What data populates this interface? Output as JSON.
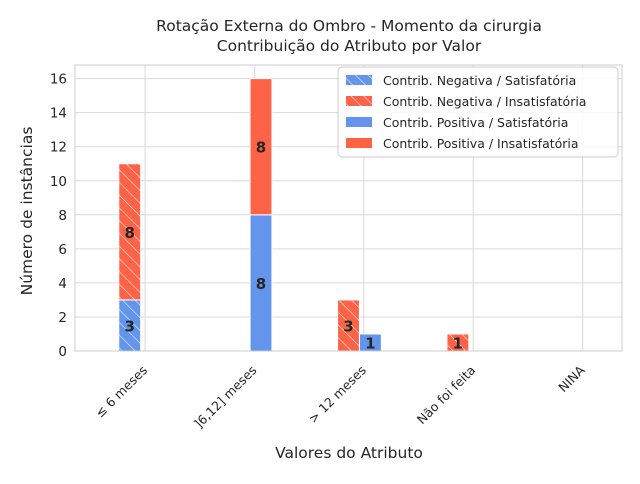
{
  "chart_data": {
    "type": "bar",
    "title_lines": [
      "Rotação Externa do Ombro - Momento da cirurgia",
      "Contribuição do Atributo por Valor"
    ],
    "xlabel": "Valores do Atributo",
    "ylabel": "Número de instâncias",
    "categories": [
      "≤ 6 meses",
      "]6,12] meses",
      "> 12 meses",
      "Não foi feita",
      "NINA"
    ],
    "ylim": [
      0,
      16.8
    ],
    "yticks": [
      0,
      2,
      4,
      6,
      8,
      10,
      12,
      14,
      16
    ],
    "grid": true,
    "legend_position": "top-right",
    "colors": {
      "satisfatoria": "#6495ED",
      "insatisfatoria": "#FF6347"
    },
    "series": [
      {
        "name": "Contrib. Negativa / Satisfatória",
        "stack": "negativa",
        "color": "#6495ED",
        "hatch": true,
        "values": [
          3,
          0,
          0,
          0,
          0
        ]
      },
      {
        "name": "Contrib. Negativa / Insatisfatória",
        "stack": "negativa",
        "color": "#FF6347",
        "hatch": true,
        "values": [
          8,
          0,
          3,
          1,
          0
        ]
      },
      {
        "name": "Contrib. Positiva / Satisfatória",
        "stack": "positiva",
        "color": "#6495ED",
        "hatch": false,
        "values": [
          0,
          8,
          1,
          0,
          0
        ]
      },
      {
        "name": "Contrib. Positiva / Insatisfatória",
        "stack": "positiva",
        "color": "#FF6347",
        "hatch": false,
        "values": [
          0,
          8,
          0,
          0,
          0
        ]
      }
    ],
    "data_labels": [
      {
        "category": "≤ 6 meses",
        "series": "Contrib. Negativa / Satisfatória",
        "text": "3"
      },
      {
        "category": "≤ 6 meses",
        "series": "Contrib. Negativa / Insatisfatória",
        "text": "8"
      },
      {
        "category": "]6,12] meses",
        "series": "Contrib. Positiva / Satisfatória",
        "text": "8"
      },
      {
        "category": "]6,12] meses",
        "series": "Contrib. Positiva / Insatisfatória",
        "text": "8"
      },
      {
        "category": "> 12 meses",
        "series": "Contrib. Negativa / Insatisfatória",
        "text": "3"
      },
      {
        "category": "> 12 meses",
        "series": "Contrib. Positiva / Satisfatória",
        "text": "1"
      },
      {
        "category": "Não foi feita",
        "series": "Contrib. Negativa / Insatisfatória",
        "text": "1"
      }
    ]
  }
}
